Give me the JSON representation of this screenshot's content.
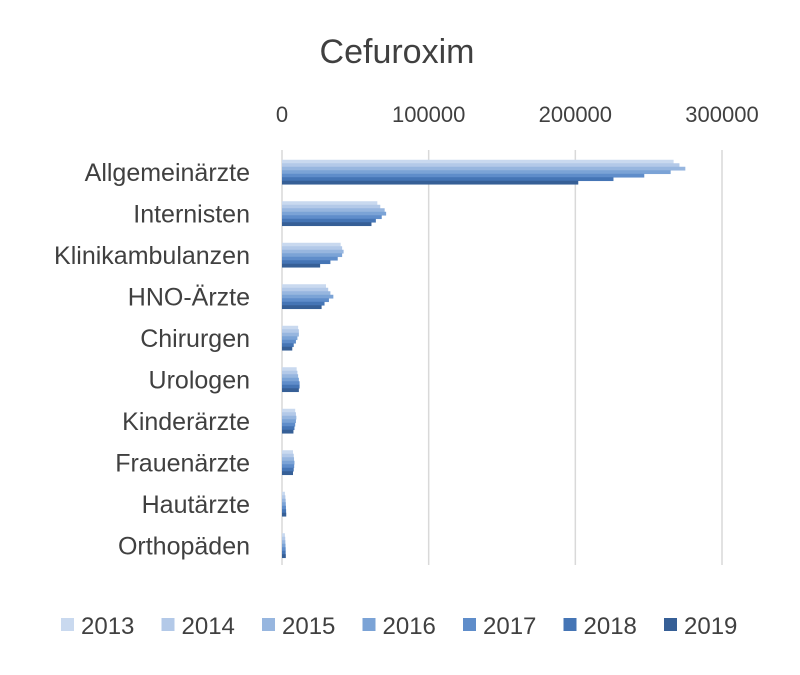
{
  "chart_data": {
    "type": "bar",
    "orientation": "horizontal",
    "title": "Cefuroxim",
    "xlabel": "",
    "ylabel": "",
    "xlim": [
      0,
      300000
    ],
    "x_ticks": [
      0,
      100000,
      200000,
      300000
    ],
    "x_tick_labels": [
      "0",
      "100000",
      "200000",
      "300000"
    ],
    "x_axis_position": "top",
    "grid": true,
    "legend_position": "bottom",
    "categories": [
      "Allgemeinärzte",
      "Internisten",
      "Klinikambulanzen",
      "HNO-Ärzte",
      "Chirurgen",
      "Urologen",
      "Kinderärzte",
      "Frauenärzte",
      "Hautärzte",
      "Orthopäden"
    ],
    "series": [
      {
        "name": "2013",
        "color": "#c9d9ef",
        "values": [
          267000,
          65000,
          40000,
          30000,
          11000,
          10000,
          9000,
          7500,
          2000,
          2000
        ]
      },
      {
        "name": "2014",
        "color": "#b3c9e8",
        "values": [
          271000,
          67000,
          41000,
          31500,
          11500,
          10500,
          9500,
          8000,
          2300,
          2200
        ]
      },
      {
        "name": "2015",
        "color": "#97b6df",
        "values": [
          275000,
          70000,
          42000,
          33000,
          11500,
          11000,
          9800,
          8200,
          2500,
          2300
        ]
      },
      {
        "name": "2016",
        "color": "#7ba3d6",
        "values": [
          265000,
          71000,
          41000,
          35000,
          10500,
          11500,
          9500,
          8500,
          2600,
          2400
        ]
      },
      {
        "name": "2017",
        "color": "#5f8dca",
        "values": [
          247000,
          68000,
          38000,
          32000,
          9500,
          12000,
          9000,
          8300,
          2700,
          2500
        ]
      },
      {
        "name": "2018",
        "color": "#4575b5",
        "values": [
          226000,
          64000,
          33000,
          29000,
          8000,
          12000,
          8500,
          8000,
          2800,
          2500
        ]
      },
      {
        "name": "2019",
        "color": "#365f96",
        "values": [
          202000,
          61000,
          26000,
          27000,
          7000,
          11500,
          7800,
          7500,
          2900,
          2600
        ]
      }
    ]
  }
}
